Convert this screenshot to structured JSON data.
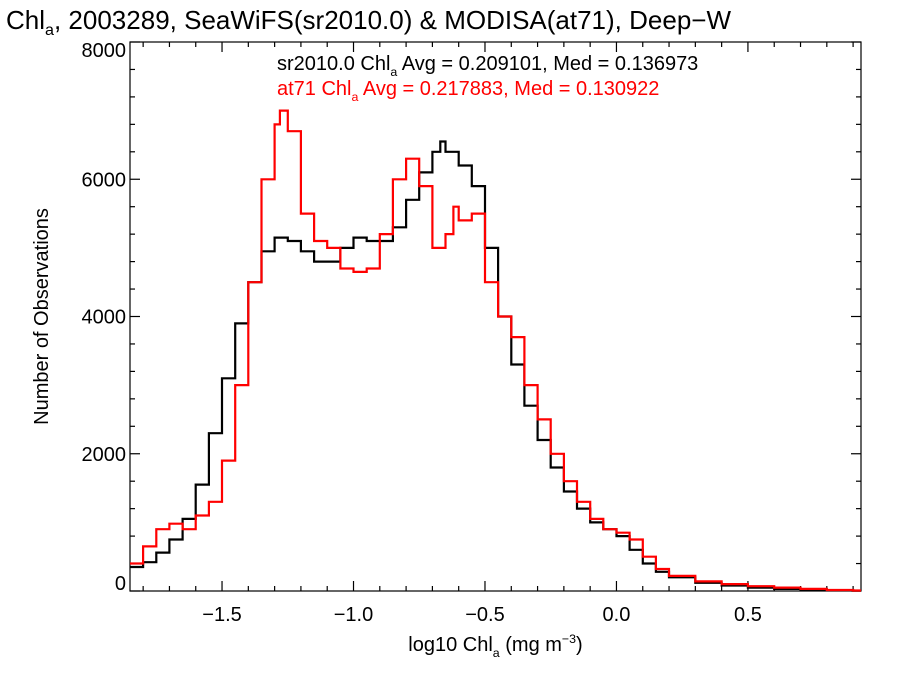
{
  "chart_data": {
    "type": "line",
    "title": {
      "parts": [
        {
          "text": "Chl"
        },
        {
          "text": "a",
          "sub": true
        },
        {
          "text": ", 2003289, SeaWiFS(sr2010.0) & MODISA(at71), Deep−W"
        }
      ]
    },
    "xlabel": {
      "parts": [
        {
          "text": "log10 Chl"
        },
        {
          "text": "a",
          "sub": true
        },
        {
          "text": " (mg m"
        },
        {
          "text": "−3",
          "sup": true
        },
        {
          "text": ")"
        }
      ]
    },
    "ylabel": "Number of Observations",
    "xlim": [
      -1.85,
      0.93
    ],
    "ylim": [
      0,
      8000
    ],
    "x_ticks": [
      {
        "value": -1.5,
        "label": "−1.5"
      },
      {
        "value": -1.0,
        "label": "−1.0"
      },
      {
        "value": -0.5,
        "label": "−0.5"
      },
      {
        "value": 0.0,
        "label": "0.0"
      },
      {
        "value": 0.5,
        "label": "0.5"
      }
    ],
    "y_ticks": [
      {
        "value": 0,
        "label": "0"
      },
      {
        "value": 2000,
        "label": "2000"
      },
      {
        "value": 4000,
        "label": "4000"
      },
      {
        "value": 6000,
        "label": "6000"
      },
      {
        "value": 8000,
        "label": "8000"
      }
    ],
    "grid": false,
    "step_histogram": true,
    "series": [
      {
        "name": "sr2010.0",
        "color": "#000000",
        "stats": [
          {
            "text": "sr2010.0 Chl"
          },
          {
            "text": "a",
            "sub": true
          },
          {
            "text": " Avg = 0.209101, Med = 0.136973"
          }
        ],
        "points": [
          [
            -1.85,
            350
          ],
          [
            -1.8,
            420
          ],
          [
            -1.75,
            560
          ],
          [
            -1.7,
            750
          ],
          [
            -1.65,
            1050
          ],
          [
            -1.6,
            1550
          ],
          [
            -1.55,
            2300
          ],
          [
            -1.5,
            3100
          ],
          [
            -1.45,
            3900
          ],
          [
            -1.4,
            4500
          ],
          [
            -1.35,
            4950
          ],
          [
            -1.3,
            5150
          ],
          [
            -1.25,
            5100
          ],
          [
            -1.2,
            4950
          ],
          [
            -1.15,
            4800
          ],
          [
            -1.1,
            4800
          ],
          [
            -1.05,
            5000
          ],
          [
            -1.0,
            5150
          ],
          [
            -0.95,
            5100
          ],
          [
            -0.9,
            5100
          ],
          [
            -0.85,
            5300
          ],
          [
            -0.8,
            5700
          ],
          [
            -0.75,
            6100
          ],
          [
            -0.7,
            6400
          ],
          [
            -0.67,
            6550
          ],
          [
            -0.65,
            6400
          ],
          [
            -0.6,
            6200
          ],
          [
            -0.55,
            5900
          ],
          [
            -0.5,
            5000
          ],
          [
            -0.45,
            4000
          ],
          [
            -0.4,
            3300
          ],
          [
            -0.35,
            2700
          ],
          [
            -0.3,
            2200
          ],
          [
            -0.25,
            1800
          ],
          [
            -0.2,
            1450
          ],
          [
            -0.15,
            1200
          ],
          [
            -0.1,
            1000
          ],
          [
            -0.05,
            900
          ],
          [
            0.0,
            800
          ],
          [
            0.05,
            600
          ],
          [
            0.1,
            400
          ],
          [
            0.15,
            280
          ],
          [
            0.2,
            200
          ],
          [
            0.3,
            120
          ],
          [
            0.4,
            80
          ],
          [
            0.5,
            50
          ],
          [
            0.6,
            30
          ],
          [
            0.7,
            20
          ],
          [
            0.8,
            10
          ],
          [
            0.9,
            5
          ]
        ]
      },
      {
        "name": "at71",
        "color": "#ff0000",
        "stats": [
          {
            "text": "at71 Chl"
          },
          {
            "text": "a",
            "sub": true
          },
          {
            "text": " Avg = 0.217883, Med = 0.130922"
          }
        ],
        "points": [
          [
            -1.85,
            400
          ],
          [
            -1.8,
            650
          ],
          [
            -1.75,
            900
          ],
          [
            -1.7,
            980
          ],
          [
            -1.65,
            900
          ],
          [
            -1.6,
            1100
          ],
          [
            -1.55,
            1300
          ],
          [
            -1.5,
            1900
          ],
          [
            -1.45,
            3000
          ],
          [
            -1.4,
            4500
          ],
          [
            -1.35,
            6000
          ],
          [
            -1.3,
            6800
          ],
          [
            -1.28,
            7000
          ],
          [
            -1.25,
            6700
          ],
          [
            -1.2,
            5500
          ],
          [
            -1.15,
            5100
          ],
          [
            -1.1,
            5000
          ],
          [
            -1.05,
            4700
          ],
          [
            -1.0,
            4650
          ],
          [
            -0.95,
            4700
          ],
          [
            -0.9,
            5200
          ],
          [
            -0.85,
            6000
          ],
          [
            -0.8,
            6300
          ],
          [
            -0.75,
            5900
          ],
          [
            -0.7,
            5000
          ],
          [
            -0.65,
            5200
          ],
          [
            -0.62,
            5600
          ],
          [
            -0.6,
            5400
          ],
          [
            -0.55,
            5500
          ],
          [
            -0.5,
            4500
          ],
          [
            -0.45,
            4000
          ],
          [
            -0.4,
            3700
          ],
          [
            -0.35,
            3000
          ],
          [
            -0.3,
            2500
          ],
          [
            -0.25,
            2000
          ],
          [
            -0.2,
            1600
          ],
          [
            -0.15,
            1300
          ],
          [
            -0.1,
            1050
          ],
          [
            -0.05,
            900
          ],
          [
            0.0,
            850
          ],
          [
            0.05,
            750
          ],
          [
            0.1,
            500
          ],
          [
            0.15,
            320
          ],
          [
            0.2,
            220
          ],
          [
            0.3,
            140
          ],
          [
            0.4,
            100
          ],
          [
            0.5,
            70
          ],
          [
            0.6,
            50
          ],
          [
            0.7,
            30
          ],
          [
            0.8,
            15
          ],
          [
            0.9,
            8
          ]
        ]
      }
    ]
  }
}
